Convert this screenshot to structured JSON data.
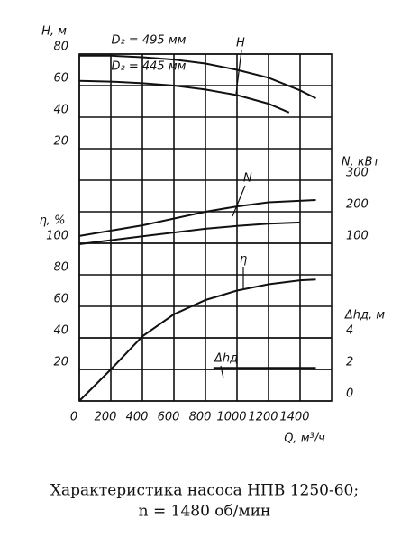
{
  "chart_data": {
    "type": "line",
    "xlabel": "Q, м³/ч",
    "xlim": [
      0,
      1600
    ],
    "xticks": [
      0,
      200,
      400,
      600,
      800,
      1000,
      1200,
      1400
    ],
    "grid": true,
    "color": "#111111",
    "y_axes": [
      {
        "label": "H, м",
        "side": "left",
        "ylim": [
          -140,
          80
        ],
        "yticks": [
          20,
          40,
          60,
          80
        ],
        "series": [
          {
            "name": "D₂ = 495 мм",
            "x": [
              0,
              200,
              400,
              600,
              800,
              1000,
              1200,
              1400,
              1500
            ],
            "values": [
              79,
              79,
              78,
              76.5,
              74,
              70,
              65,
              57,
              52
            ]
          },
          {
            "name": "D₂ = 445 мм",
            "x": [
              0,
              200,
              400,
              600,
              800,
              1000,
              1200,
              1330
            ],
            "values": [
              63,
              62.5,
              61.5,
              60,
              57.5,
              54,
              48.5,
              43
            ]
          }
        ]
      },
      {
        "label": "N, кВт",
        "side": "right",
        "ylim": [
          -400,
          700
        ],
        "yticks": [
          100,
          200,
          300
        ],
        "series": [
          {
            "x": [
              0,
              400,
              800,
              1000,
              1200,
              1500
            ],
            "values": [
              123,
              157,
              200,
              217,
              230,
              237
            ]
          },
          {
            "x": [
              0,
              400,
              800,
              1000,
              1200,
              1400
            ],
            "values": [
              97,
              122,
              146,
              155,
              162,
              166
            ]
          }
        ]
      },
      {
        "label": "η, %",
        "side": "left",
        "ylim": [
          0,
          220
        ],
        "yticks": [
          20,
          40,
          60,
          80,
          100
        ],
        "series": [
          {
            "x": [
              0,
              100,
              200,
              400,
              600,
              800,
              1000,
              1200,
              1400,
              1500
            ],
            "values": [
              0,
              10,
              20,
              41,
              55,
              64,
              70,
              74,
              76.5,
              77
            ]
          }
        ]
      },
      {
        "label": "Δhд, м",
        "side": "right",
        "ylim": [
          0,
          22
        ],
        "yticks": [
          0,
          2,
          4
        ],
        "series": [
          {
            "x": [
              850,
              1500
            ],
            "values": [
              2.1,
              2.1
            ]
          }
        ]
      }
    ],
    "annotations": [
      "H",
      "N",
      "η",
      "Δhд"
    ]
  },
  "caption": [
    "Характеристика насоса НПВ 1250-60;",
    "n = 1480 об/мин"
  ]
}
